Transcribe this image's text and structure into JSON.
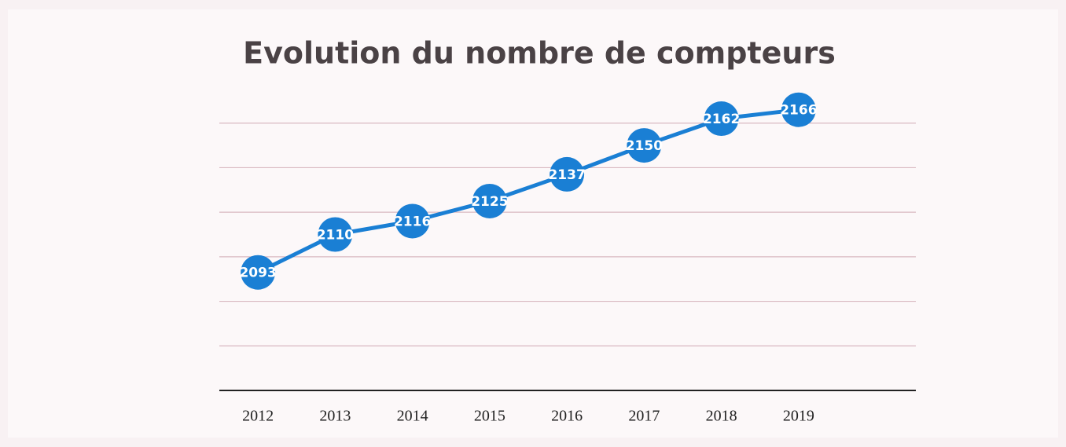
{
  "chart_data": {
    "type": "line",
    "title": "Evolution du nombre de compteurs",
    "categories": [
      "2012",
      "2013",
      "2014",
      "2015",
      "2016",
      "2017",
      "2018",
      "2019"
    ],
    "values": [
      2093,
      2110,
      2116,
      2125,
      2137,
      2150,
      2162,
      2166
    ],
    "color": "#1a7fd4",
    "ylim": [
      2040,
      2180
    ],
    "yticks": [
      2040,
      2060,
      2080,
      2100,
      2120,
      2140,
      2160
    ],
    "grid": true
  }
}
